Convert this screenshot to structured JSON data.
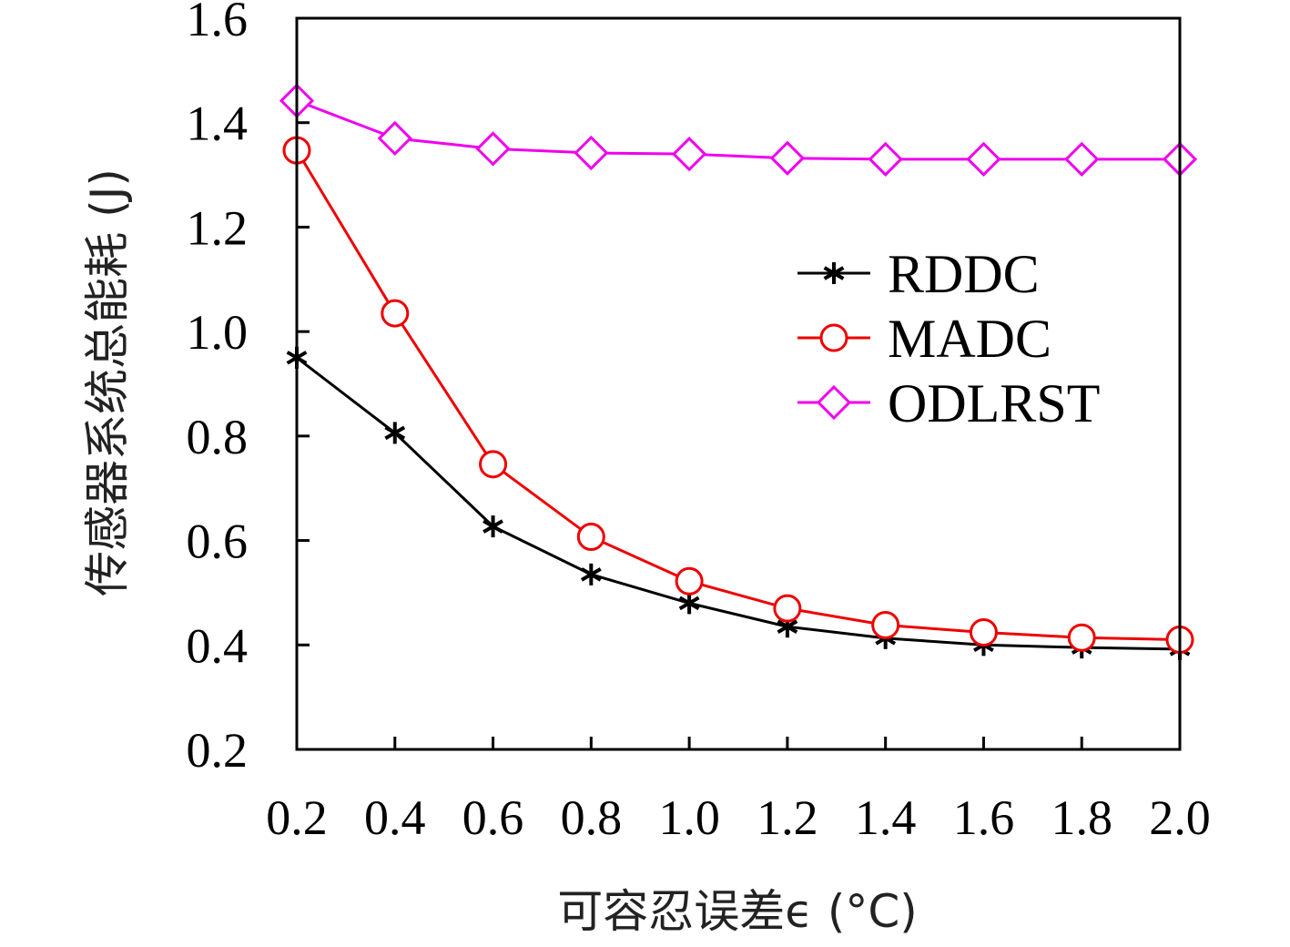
{
  "chart_data": {
    "type": "line",
    "title": "",
    "xlabel": "可容忍误差ϵ (°C)",
    "ylabel": "传感器系统总能耗 (J)",
    "x": [
      0.2,
      0.4,
      0.6,
      0.8,
      1.0,
      1.2,
      1.4,
      1.6,
      1.8,
      2.0
    ],
    "x_tick_labels": [
      "0.2",
      "0.4",
      "0.6",
      "0.8",
      "1.0",
      "1.2",
      "1.4",
      "1.6",
      "1.8",
      "2.0"
    ],
    "y_tick_labels": [
      "0.2",
      "0.4",
      "0.6",
      "0.8",
      "1.0",
      "1.2",
      "1.4",
      "1.6"
    ],
    "y_ticks": [
      0.2,
      0.4,
      0.6,
      0.8,
      1.0,
      1.2,
      1.4,
      1.6
    ],
    "xlim": [
      0.2,
      2.0
    ],
    "ylim": [
      0.2,
      1.6
    ],
    "grid": false,
    "legend_position": "center-right",
    "series": [
      {
        "name": "RDDC",
        "color": "#000000",
        "marker": "asterisk",
        "values": [
          0.95,
          0.806,
          0.627,
          0.535,
          0.48,
          0.435,
          0.413,
          0.4,
          0.395,
          0.392
        ]
      },
      {
        "name": "MADC",
        "color": "#ee0000",
        "marker": "circle",
        "values": [
          1.347,
          1.035,
          0.746,
          0.607,
          0.522,
          0.47,
          0.438,
          0.424,
          0.414,
          0.41
        ]
      },
      {
        "name": "ODLRST",
        "color": "#ee00ee",
        "marker": "diamond",
        "values": [
          1.442,
          1.37,
          1.35,
          1.342,
          1.34,
          1.332,
          1.33,
          1.33,
          1.33,
          1.33
        ]
      }
    ]
  }
}
